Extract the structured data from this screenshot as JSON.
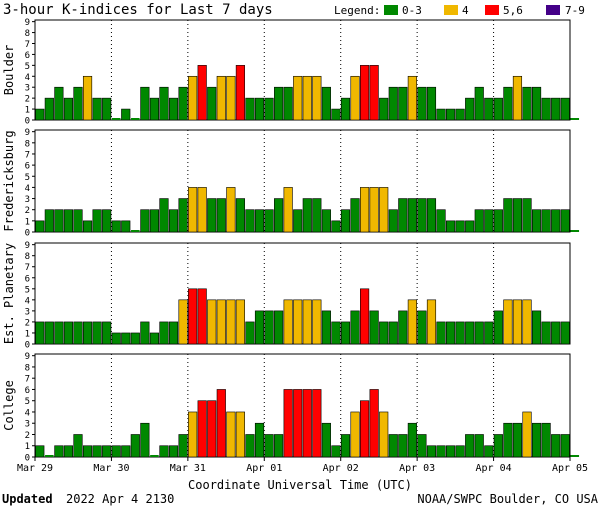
{
  "title": "3-hour K-indices for Last 7 days",
  "legend": {
    "label": "Legend:",
    "items": [
      {
        "label": "0-3",
        "color": "#008800"
      },
      {
        "label": "4",
        "color": "#f0b800"
      },
      {
        "label": "5,6",
        "color": "#ff0000"
      },
      {
        "label": "7-9",
        "color": "#440088"
      }
    ]
  },
  "footer": {
    "updated_label": "Updated",
    "updated_value": "2022 Apr  4 2130",
    "source": "NOAA/SWPC Boulder, CO USA"
  },
  "chart_data": {
    "type": "bar",
    "xlabel": "Coordinate Universal Time (UTC)",
    "x_ticks": [
      "Mar 29",
      "Mar 30",
      "Mar 31",
      "Apr 01",
      "Apr 02",
      "Apr 03",
      "Apr 04",
      "Apr 05"
    ],
    "ylim": [
      0,
      9
    ],
    "y_ticks": [
      0,
      1,
      2,
      3,
      4,
      5,
      6,
      7,
      8,
      9
    ],
    "bins_per_day": 8,
    "color_scale": [
      {
        "range": "0-3",
        "color": "#008800"
      },
      {
        "range": "4",
        "color": "#f0b800"
      },
      {
        "range": "5,6",
        "color": "#ff0000"
      },
      {
        "range": "7-9",
        "color": "#440088"
      }
    ],
    "series": [
      {
        "name": "Boulder",
        "values": [
          1,
          2,
          3,
          2,
          3,
          4,
          2,
          2,
          0,
          1,
          0,
          3,
          2,
          3,
          2,
          3,
          4,
          5,
          3,
          4,
          4,
          5,
          2,
          2,
          2,
          3,
          3,
          4,
          4,
          4,
          3,
          1,
          2,
          4,
          5,
          5,
          2,
          3,
          3,
          4,
          3,
          3,
          1,
          1,
          1,
          2,
          3,
          2,
          2,
          3,
          4,
          3,
          3,
          2,
          2,
          2,
          0
        ]
      },
      {
        "name": "Fredericksburg",
        "values": [
          1,
          2,
          2,
          2,
          2,
          1,
          2,
          2,
          1,
          1,
          0,
          2,
          2,
          3,
          2,
          3,
          4,
          4,
          3,
          3,
          4,
          3,
          2,
          2,
          2,
          3,
          4,
          2,
          3,
          3,
          2,
          1,
          2,
          3,
          4,
          4,
          4,
          2,
          3,
          3,
          3,
          3,
          2,
          1,
          1,
          1,
          2,
          2,
          2,
          3,
          3,
          3,
          2,
          2,
          2,
          2,
          0
        ]
      },
      {
        "name": "Est. Planetary",
        "values": [
          2,
          2,
          2,
          2,
          2,
          2,
          2,
          2,
          1,
          1,
          1,
          2,
          1,
          2,
          2,
          4,
          5,
          5,
          4,
          4,
          4,
          4,
          2,
          3,
          3,
          3,
          4,
          4,
          4,
          4,
          3,
          2,
          2,
          3,
          5,
          3,
          2,
          2,
          3,
          4,
          3,
          4,
          2,
          2,
          2,
          2,
          2,
          2,
          3,
          4,
          4,
          4,
          3,
          2,
          2,
          2
        ]
      },
      {
        "name": "College",
        "values": [
          1,
          0,
          1,
          1,
          2,
          1,
          1,
          1,
          1,
          1,
          2,
          3,
          0,
          1,
          1,
          2,
          4,
          5,
          5,
          6,
          4,
          4,
          2,
          3,
          2,
          2,
          6,
          6,
          6,
          6,
          3,
          1,
          2,
          4,
          5,
          6,
          4,
          2,
          2,
          3,
          2,
          1,
          1,
          1,
          1,
          2,
          2,
          1,
          2,
          3,
          3,
          4,
          3,
          3,
          2,
          2,
          0
        ]
      }
    ]
  }
}
